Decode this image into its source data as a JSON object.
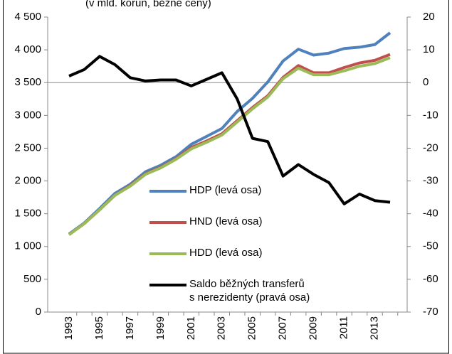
{
  "chart_data": {
    "type": "line",
    "subtitle": "(v mld. korun, běžné ceny)",
    "categories": [
      "1993",
      null,
      "1995",
      null,
      "1997",
      null,
      "1999",
      null,
      "2001",
      null,
      "2003",
      null,
      "2005",
      null,
      "2007",
      null,
      "2009",
      null,
      "2011",
      null,
      "2013",
      null
    ],
    "ylim": [
      0,
      4500
    ],
    "yticks": [
      0,
      500,
      {
        "value": 1000,
        "label": "1 000"
      },
      {
        "value": 1500,
        "label": "1 500"
      },
      {
        "value": 2000,
        "label": "2 000"
      },
      {
        "value": 2500,
        "label": "2 500"
      },
      {
        "value": 3000,
        "label": "3 000"
      },
      {
        "value": 3500,
        "label": "3 500"
      },
      {
        "value": 4000,
        "label": "4 000"
      },
      {
        "value": 4500,
        "label": "4 500"
      }
    ],
    "y2lim": [
      -70,
      20
    ],
    "y2ticks": [
      -70,
      -60,
      -50,
      -40,
      -30,
      -20,
      -10,
      0,
      10,
      20
    ],
    "series": [
      {
        "name": "HDP (levá osa)",
        "color": "#4f81bd",
        "values": [
          1190,
          1360,
          1580,
          1810,
          1950,
          2140,
          2240,
          2370,
          2560,
          2680,
          2800,
          3060,
          3260,
          3510,
          3830,
          4010,
          3920,
          3950,
          4020,
          4040,
          4080,
          4260
        ]
      },
      {
        "name": "HND (levá osa)",
        "color": "#c0504d",
        "values": [
          1180,
          1350,
          1560,
          1780,
          1930,
          2110,
          2210,
          2340,
          2510,
          2610,
          2720,
          2920,
          3120,
          3300,
          3580,
          3760,
          3650,
          3650,
          3730,
          3800,
          3840,
          3930
        ]
      },
      {
        "name": "HDD (levá osa)",
        "color": "#9bbb59",
        "values": [
          1180,
          1350,
          1560,
          1780,
          1920,
          2100,
          2200,
          2330,
          2490,
          2590,
          2700,
          2900,
          3100,
          3280,
          3560,
          3720,
          3620,
          3620,
          3680,
          3750,
          3790,
          3880
        ]
      },
      {
        "name": "Saldo běžných transferů\ns nerezidenty (pravá osa)",
        "color": "#000000",
        "axis": "y2",
        "values": [
          2,
          4,
          8,
          5.5,
          1.5,
          0.5,
          0.8,
          0.8,
          -1,
          1,
          3,
          -5,
          -17,
          -18,
          -28.5,
          -25,
          -28,
          -30.5,
          -37,
          -34,
          -36,
          -36.5
        ]
      }
    ]
  }
}
